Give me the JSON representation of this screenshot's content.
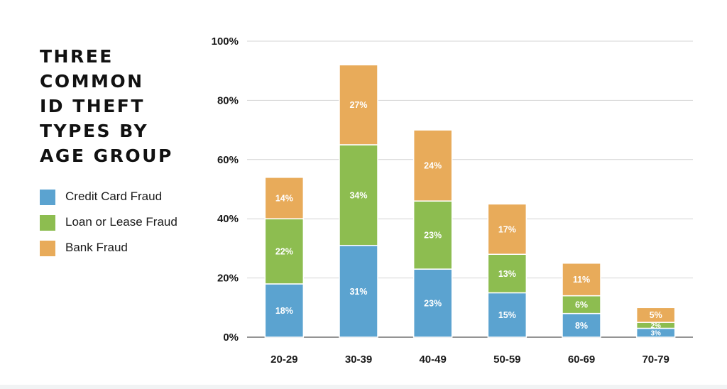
{
  "title_lines": [
    "THREE",
    "COMMON",
    "ID THEFT",
    "TYPES BY",
    "AGE GROUP"
  ],
  "legend": [
    {
      "label": "Credit Card Fraud",
      "color": "#5ba3d0"
    },
    {
      "label": "Loan or Lease Fraud",
      "color": "#8dbd50"
    },
    {
      "label": "Bank Fraud",
      "color": "#e8ab5a"
    }
  ],
  "chart_data": {
    "type": "bar",
    "stacked": true,
    "title": "THREE COMMON ID THEFT TYPES BY AGE GROUP",
    "categories": [
      "20-29",
      "30-39",
      "40-49",
      "50-59",
      "60-69",
      "70-79"
    ],
    "series": [
      {
        "name": "Credit Card Fraud",
        "color": "#5ba3d0",
        "values": [
          18,
          31,
          23,
          15,
          8,
          3
        ],
        "labels": [
          "18%",
          "31%",
          "23%",
          "15%",
          "8%",
          "3%"
        ]
      },
      {
        "name": "Loan or Lease Fraud",
        "color": "#8dbd50",
        "values": [
          22,
          34,
          23,
          13,
          6,
          2
        ],
        "labels": [
          "22%",
          "34%",
          "23%",
          "13%",
          "6%",
          "2%"
        ]
      },
      {
        "name": "Bank Fraud",
        "color": "#e8ab5a",
        "values": [
          14,
          27,
          24,
          17,
          11,
          5
        ],
        "labels": [
          "14%",
          "27%",
          "24%",
          "17%",
          "11%",
          "5%"
        ]
      }
    ],
    "y_ticks": [
      0,
      20,
      40,
      60,
      80,
      100
    ],
    "y_tick_labels": [
      "0%",
      "20%",
      "40%",
      "60%",
      "80%",
      "100%"
    ],
    "ylim": [
      0,
      100
    ],
    "grid": true,
    "legend_position": "left"
  }
}
